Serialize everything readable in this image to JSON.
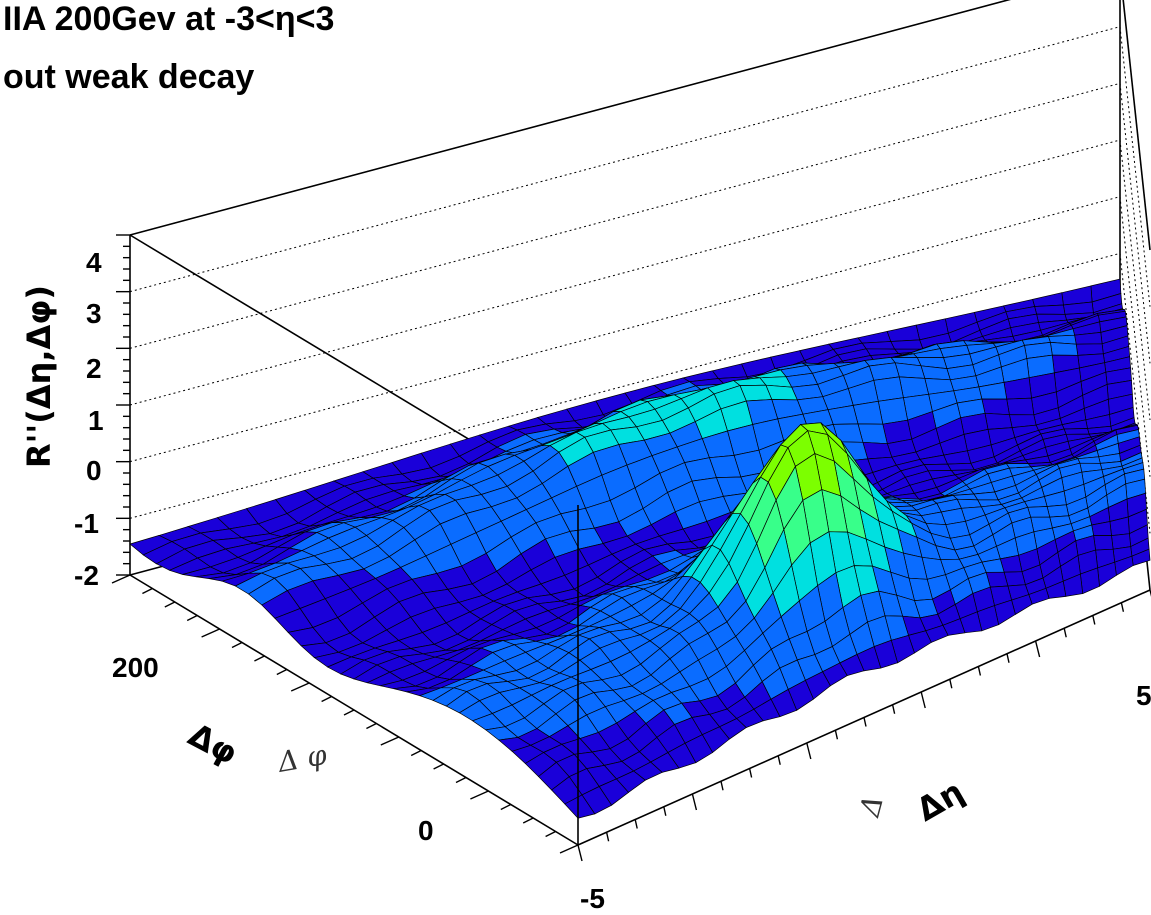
{
  "title": {
    "line1": "IIA 200Gev at -3<η<3",
    "line2": "out weak decay"
  },
  "chart_data": {
    "type": "surface",
    "z_label": "R''(Δη,Δφ)",
    "x_label": "Δη",
    "y_label": "Δφ",
    "y_label_ghost": "Δ φ",
    "x_label_ghost": "Δ",
    "z_ticks": [
      "4",
      "3",
      "2",
      "1",
      "0",
      "-1",
      "-2"
    ],
    "z_range": [
      -2,
      4
    ],
    "x_ticks": [
      "-5",
      "5"
    ],
    "x_range": [
      -5,
      5
    ],
    "y_ticks": [
      "200",
      "0"
    ],
    "y_range": [
      -90,
      270
    ],
    "grid": true,
    "peaks": [
      {
        "description_free": true,
        "x": 0,
        "y": 0,
        "z": 2.0
      },
      {
        "x": 0,
        "y": 180,
        "z": 2.5
      }
    ],
    "colors": {
      "low": "#1a00d9",
      "mid_low": "#0a6cff",
      "mid": "#00e0e0",
      "mid_high": "#38ff8a",
      "high": "#7cff00"
    }
  }
}
